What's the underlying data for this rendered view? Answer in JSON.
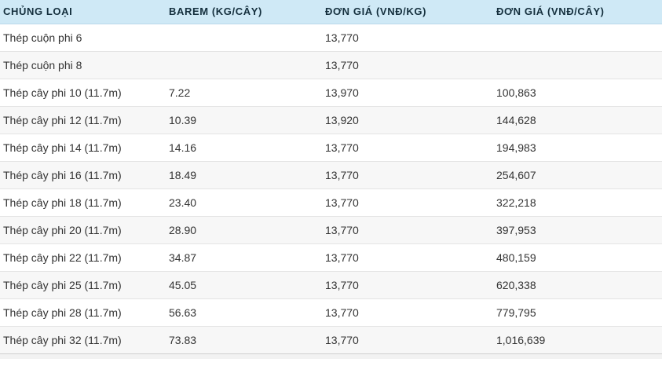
{
  "table": {
    "columns": [
      {
        "label": "CHỦNG LOẠI"
      },
      {
        "label": "BAREM (KG/CÂY)"
      },
      {
        "label": "ĐƠN GIÁ (VNĐ/KG)"
      },
      {
        "label": "ĐƠN GIÁ (VNĐ/CÂY)"
      }
    ],
    "rows": [
      {
        "name": "Thép cuộn phi 6",
        "barem": "",
        "price_kg": "13,770",
        "price_bar": ""
      },
      {
        "name": "Thép cuộn phi 8",
        "barem": "",
        "price_kg": "13,770",
        "price_bar": ""
      },
      {
        "name": "Thép cây phi 10 (11.7m)",
        "barem": "7.22",
        "price_kg": "13,970",
        "price_bar": "100,863"
      },
      {
        "name": "Thép cây phi 12 (11.7m)",
        "barem": "10.39",
        "price_kg": "13,920",
        "price_bar": "144,628"
      },
      {
        "name": "Thép cây phi 14 (11.7m)",
        "barem": "14.16",
        "price_kg": "13,770",
        "price_bar": "194,983"
      },
      {
        "name": "Thép cây phi 16 (11.7m)",
        "barem": "18.49",
        "price_kg": "13,770",
        "price_bar": "254,607"
      },
      {
        "name": "Thép cây phi 18 (11.7m)",
        "barem": "23.40",
        "price_kg": "13,770",
        "price_bar": "322,218"
      },
      {
        "name": "Thép cây phi 20 (11.7m)",
        "barem": "28.90",
        "price_kg": "13,770",
        "price_bar": "397,953"
      },
      {
        "name": "Thép cây phi 22 (11.7m)",
        "barem": "34.87",
        "price_kg": "13,770",
        "price_bar": "480,159"
      },
      {
        "name": "Thép cây phi 25 (11.7m)",
        "barem": "45.05",
        "price_kg": "13,770",
        "price_bar": "620,338"
      },
      {
        "name": "Thép cây phi 28 (11.7m)",
        "barem": "56.63",
        "price_kg": "13,770",
        "price_bar": "779,795"
      },
      {
        "name": "Thép cây phi 32 (11.7m)",
        "barem": "73.83",
        "price_kg": "13,770",
        "price_bar": "1,016,639"
      }
    ],
    "colors": {
      "header_bg": "#cfe9f6",
      "header_text": "#142f3d",
      "row_alt_bg": "#f7f7f7",
      "row_bg": "#ffffff",
      "divider": "#e4e4e4",
      "body_text": "#333333"
    }
  }
}
